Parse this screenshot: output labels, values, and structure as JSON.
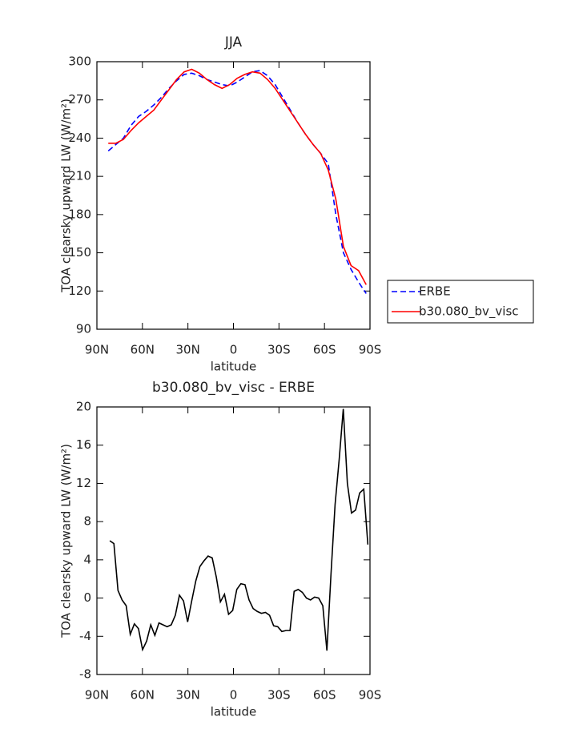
{
  "chart_data": [
    {
      "type": "line",
      "title": "JJA",
      "xlabel": "latitude",
      "ylabel": "TOA clearsky upward LW (W/m²)",
      "x": [
        82.5,
        77.5,
        72.5,
        67.5,
        62.5,
        57.5,
        52.5,
        47.5,
        42.5,
        37.5,
        32.5,
        27.5,
        22.5,
        17.5,
        12.5,
        7.5,
        2.5,
        -2.5,
        -7.5,
        -12.5,
        -17.5,
        -22.5,
        -27.5,
        -32.5,
        -37.5,
        -42.5,
        -47.5,
        -52.5,
        -57.5,
        -62.5,
        -67.5,
        -72.5,
        -77.5,
        -82.5,
        -87.5
      ],
      "series": [
        {
          "name": "ERBE",
          "color": "#0000ff",
          "line_style": "dashed",
          "values": [
            230,
            235,
            240,
            250,
            257,
            261,
            266,
            272,
            279,
            285,
            290,
            291,
            289,
            286,
            284,
            282,
            281,
            284,
            288,
            292,
            293,
            289,
            282,
            272,
            262,
            252,
            243,
            235,
            228,
            220,
            180,
            150,
            137,
            127,
            118
          ]
        },
        {
          "name": "b30.080_bv_visc",
          "color": "#ff0000",
          "line_style": "solid",
          "values": [
            236,
            236,
            239,
            246,
            252,
            257,
            262,
            270,
            278,
            286,
            292,
            294,
            291,
            286,
            282,
            279,
            282,
            287,
            290,
            292,
            291,
            286,
            279,
            270,
            261,
            252,
            243,
            235,
            228,
            215,
            192,
            155,
            140,
            136,
            125
          ]
        }
      ],
      "xlim": [
        90,
        -90
      ],
      "ylim": [
        90,
        300
      ],
      "xticks": [
        {
          "value": 90,
          "label": "90N"
        },
        {
          "value": 60,
          "label": "60N"
        },
        {
          "value": 30,
          "label": "30N"
        },
        0,
        {
          "value": -30,
          "label": "30S"
        },
        {
          "value": -60,
          "label": "60S"
        },
        {
          "value": -90,
          "label": "90S"
        }
      ],
      "yticks": [
        90,
        120,
        150,
        180,
        210,
        240,
        270,
        300
      ],
      "legend": "right"
    },
    {
      "type": "line",
      "title": "b30.080_bv_visc - ERBE",
      "xlabel": "latitude",
      "ylabel": "TOA clearsky upward LW (W/m²)",
      "x": [
        81.5,
        78.8,
        76.1,
        73.4,
        70.7,
        68,
        65.3,
        62.6,
        59.9,
        57.2,
        54.5,
        51.8,
        49.1,
        46.4,
        43.7,
        41,
        38.3,
        35.6,
        32.9,
        30.2,
        27.5,
        24.8,
        22.1,
        19.4,
        16.7,
        14,
        11.3,
        8.6,
        5.9,
        3.2,
        0.5,
        -2.2,
        -4.9,
        -7.6,
        -10.3,
        -13,
        -15.7,
        -18.4,
        -21.1,
        -23.8,
        -26.5,
        -29.2,
        -31.9,
        -34.6,
        -37.3,
        -40,
        -42.7,
        -45.4,
        -48.1,
        -50.8,
        -53.5,
        -56.2,
        -58.9,
        -61.6,
        -64.3,
        -67,
        -69.7,
        -72.4,
        -75.1,
        -77.8,
        -80.5,
        -83.2,
        -85.9,
        -88.6
      ],
      "series": [
        {
          "color": "#000000",
          "line_style": "solid",
          "values": [
            6,
            5.7,
            0.8,
            -0.2,
            -0.8,
            -3.8,
            -2.7,
            -3.2,
            -5.4,
            -4.5,
            -2.8,
            -3.9,
            -2.6,
            -2.8,
            -3.0,
            -2.8,
            -1.8,
            0.3,
            -0.3,
            -2.5,
            -0.3,
            1.8,
            3.3,
            3.9,
            4.4,
            4.2,
            2.2,
            -0.4,
            0.4,
            -1.7,
            -1.3,
            0.9,
            1.5,
            1.4,
            -0.2,
            -1.1,
            -1.4,
            -1.6,
            -1.5,
            -1.8,
            -2.9,
            -3.0,
            -3.5,
            -3.4,
            -3.4,
            0.7,
            0.9,
            0.6,
            0.0,
            -0.2,
            0.1,
            0.0,
            -0.8,
            -5.5,
            2.5,
            9.8,
            14.5,
            19.8,
            12.0,
            8.9,
            9.2,
            11.0,
            11.4,
            5.6
          ]
        }
      ],
      "xlim": [
        90,
        -90
      ],
      "ylim": [
        -8,
        20
      ],
      "xticks": [
        {
          "value": 90,
          "label": "90N"
        },
        {
          "value": 60,
          "label": "60N"
        },
        {
          "value": 30,
          "label": "30N"
        },
        0,
        {
          "value": -30,
          "label": "30S"
        },
        {
          "value": -60,
          "label": "60S"
        },
        {
          "value": -90,
          "label": "90S"
        }
      ],
      "yticks": [
        -8,
        -4,
        0,
        4,
        8,
        12,
        16,
        20
      ]
    }
  ]
}
